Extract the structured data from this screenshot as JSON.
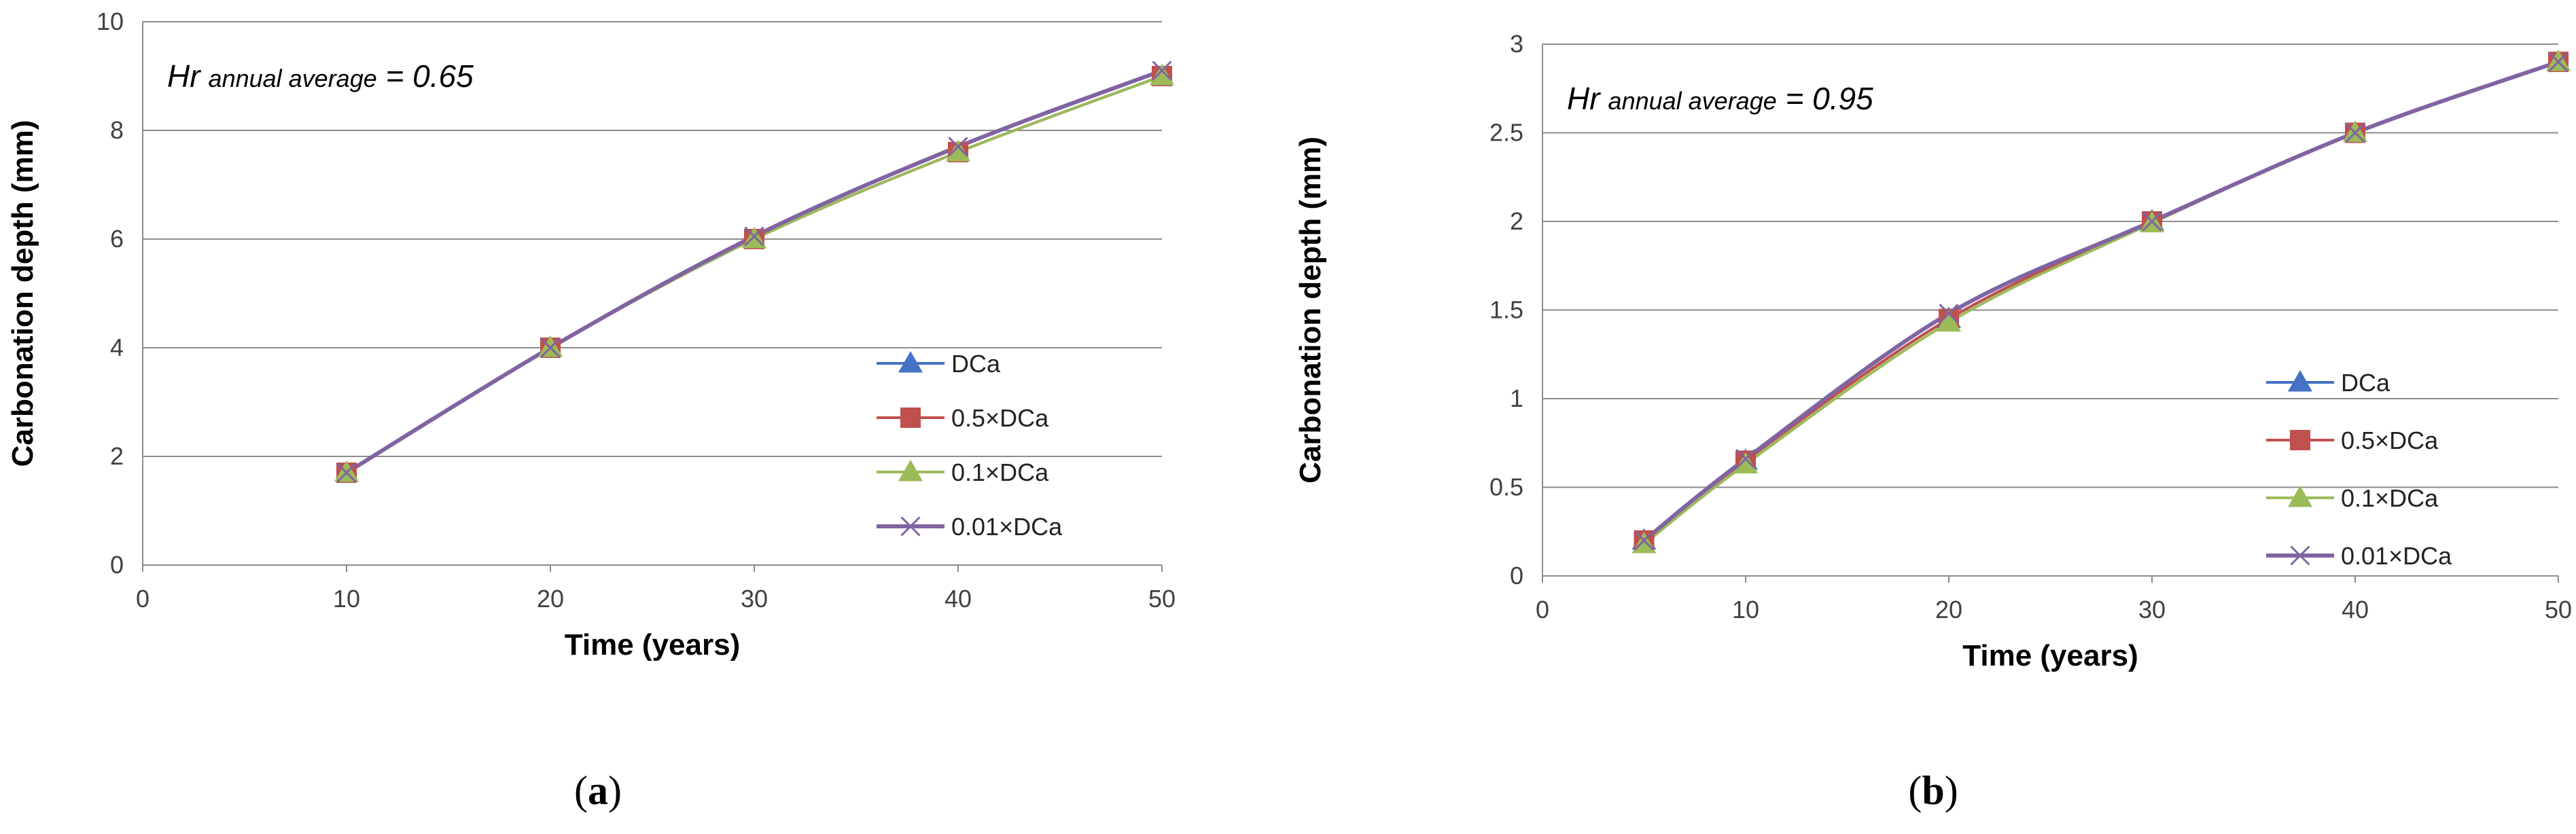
{
  "chart_data": [
    {
      "type": "line",
      "panel_label": "a",
      "title": "",
      "annotation": {
        "main": "Hr",
        "sub": "annual average",
        "tail": " = 0.65"
      },
      "xlabel": "Time (years)",
      "ylabel": "Carbonation depth (mm)",
      "xlim": [
        0,
        50
      ],
      "ylim": [
        0,
        10
      ],
      "xticks": [
        0,
        10,
        20,
        30,
        40,
        50
      ],
      "yticks": [
        0,
        2,
        4,
        6,
        8,
        10
      ],
      "ytick_labels": [
        "0",
        "2",
        "4",
        "6",
        "8",
        "10"
      ],
      "grid": true,
      "legend_position": "bottom-right",
      "series": [
        {
          "name": "DCa",
          "marker": "triangle",
          "color": "#4472C4",
          "x": [
            10,
            20,
            30,
            40,
            50
          ],
          "values": [
            1.7,
            4.0,
            6.0,
            7.6,
            9.0
          ]
        },
        {
          "name": "0.5×DCa",
          "marker": "square",
          "color": "#C0504D",
          "x": [
            10,
            20,
            30,
            40,
            50
          ],
          "values": [
            1.7,
            4.0,
            6.0,
            7.6,
            9.0
          ]
        },
        {
          "name": "0.1×DCa",
          "marker": "triangle",
          "color": "#9BBB59",
          "x": [
            10,
            20,
            30,
            40,
            50
          ],
          "values": [
            1.7,
            4.0,
            6.0,
            7.6,
            9.0
          ]
        },
        {
          "name": "0.01×DCa",
          "marker": "x",
          "color": "#8064A2",
          "x": [
            10,
            20,
            30,
            40,
            50
          ],
          "values": [
            1.7,
            4.0,
            6.05,
            7.7,
            9.1
          ]
        }
      ]
    },
    {
      "type": "line",
      "panel_label": "b",
      "title": "",
      "annotation": {
        "main": "Hr",
        "sub": "annual average",
        "tail": " = 0.95"
      },
      "xlabel": "Time (years)",
      "ylabel": "Carbonation depth (mm)",
      "xlim": [
        0,
        50
      ],
      "ylim": [
        0,
        3
      ],
      "xticks": [
        0,
        10,
        20,
        30,
        40,
        50
      ],
      "yticks": [
        0,
        0.5,
        1,
        1.5,
        2,
        2.5,
        3
      ],
      "ytick_labels": [
        "0",
        "0.5",
        "1",
        "1.5",
        "2",
        "2.5",
        "3"
      ],
      "grid": true,
      "legend_position": "bottom-right",
      "series": [
        {
          "name": "DCa",
          "marker": "triangle",
          "color": "#4472C4",
          "x": [
            5,
            10,
            20,
            30,
            40,
            50
          ],
          "values": [
            0.2,
            0.65,
            1.45,
            2.0,
            2.5,
            2.9
          ]
        },
        {
          "name": "0.5×DCa",
          "marker": "square",
          "color": "#C0504D",
          "x": [
            5,
            10,
            20,
            30,
            40,
            50
          ],
          "values": [
            0.2,
            0.65,
            1.45,
            2.0,
            2.5,
            2.9
          ]
        },
        {
          "name": "0.1×DCa",
          "marker": "triangle",
          "color": "#9BBB59",
          "x": [
            5,
            10,
            20,
            30,
            40,
            50
          ],
          "values": [
            0.18,
            0.63,
            1.43,
            1.99,
            2.5,
            2.9
          ]
        },
        {
          "name": "0.01×DCa",
          "marker": "x",
          "color": "#8064A2",
          "x": [
            5,
            10,
            20,
            30,
            40,
            50
          ],
          "values": [
            0.2,
            0.66,
            1.48,
            2.0,
            2.5,
            2.9
          ]
        }
      ]
    }
  ]
}
